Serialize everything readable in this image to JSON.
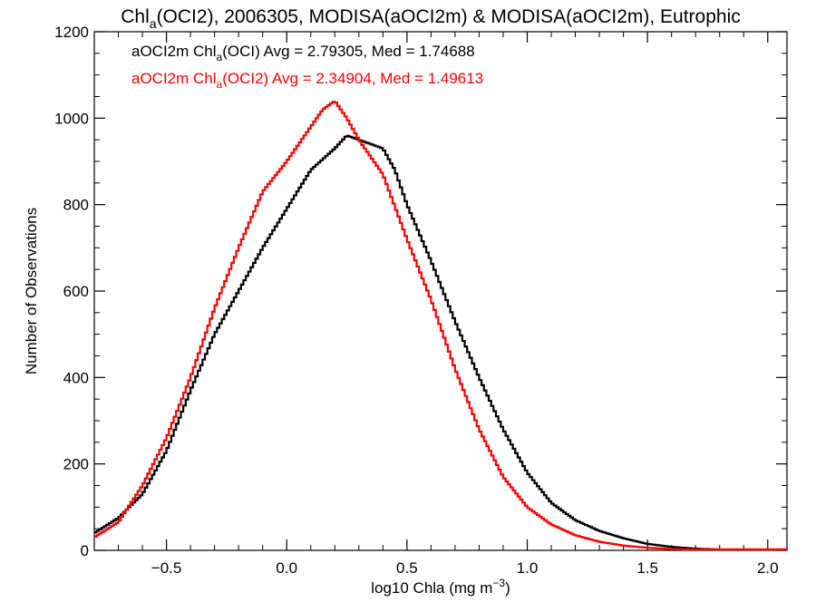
{
  "chart_data": {
    "type": "line",
    "title": {
      "prefix": "Chl",
      "sub": "a",
      "suffix": "(OCI2), 2006305, MODISA(aOCI2m) & MODISA(aOCI2m), Eutrophic"
    },
    "xlabel": {
      "text": "log10 Chla (mg m",
      "sup": "−3",
      "close": ")"
    },
    "ylabel": "Number of Observations",
    "xlim": [
      -0.8,
      2.08
    ],
    "ylim": [
      0,
      1200
    ],
    "x_ticks": [
      -0.5,
      0.0,
      0.5,
      1.0,
      1.5,
      2.0
    ],
    "x_tick_labels": [
      "−0.5",
      "0.0",
      "0.5",
      "1.0",
      "1.5",
      "2.0"
    ],
    "y_ticks": [
      0,
      200,
      400,
      600,
      800,
      1000,
      1200
    ],
    "y_tick_labels": [
      "0",
      "200",
      "400",
      "600",
      "800",
      "1000",
      "1200"
    ],
    "grid": false,
    "legend_position": "top-left",
    "series": [
      {
        "name": {
          "prefix": "aOCI2m Chl",
          "sub": "a",
          "suffix": "(OCI) Avg = 2.79305, Med = 1.74688"
        },
        "color": "#000000",
        "points": [
          [
            -0.8,
            40
          ],
          [
            -0.7,
            75
          ],
          [
            -0.6,
            130
          ],
          [
            -0.5,
            230
          ],
          [
            -0.4,
            370
          ],
          [
            -0.3,
            500
          ],
          [
            -0.2,
            600
          ],
          [
            -0.1,
            700
          ],
          [
            0.0,
            790
          ],
          [
            0.1,
            880
          ],
          [
            0.2,
            930
          ],
          [
            0.25,
            960
          ],
          [
            0.3,
            950
          ],
          [
            0.4,
            930
          ],
          [
            0.45,
            880
          ],
          [
            0.5,
            800
          ],
          [
            0.6,
            670
          ],
          [
            0.7,
            530
          ],
          [
            0.8,
            400
          ],
          [
            0.9,
            280
          ],
          [
            1.0,
            180
          ],
          [
            1.1,
            110
          ],
          [
            1.2,
            70
          ],
          [
            1.3,
            45
          ],
          [
            1.4,
            28
          ],
          [
            1.5,
            15
          ],
          [
            1.6,
            8
          ],
          [
            1.7,
            4
          ],
          [
            1.8,
            2
          ],
          [
            1.9,
            1
          ],
          [
            2.0,
            0
          ],
          [
            2.08,
            0
          ]
        ]
      },
      {
        "name": {
          "prefix": "aOCI2m Chl",
          "sub": "a",
          "suffix": "(OCI2) Avg = 2.34904, Med = 1.49613"
        },
        "color": "#ff0000",
        "points": [
          [
            -0.8,
            30
          ],
          [
            -0.7,
            65
          ],
          [
            -0.6,
            150
          ],
          [
            -0.5,
            260
          ],
          [
            -0.4,
            400
          ],
          [
            -0.3,
            560
          ],
          [
            -0.2,
            700
          ],
          [
            -0.1,
            830
          ],
          [
            0.0,
            900
          ],
          [
            0.1,
            980
          ],
          [
            0.15,
            1020
          ],
          [
            0.2,
            1040
          ],
          [
            0.25,
            1000
          ],
          [
            0.3,
            950
          ],
          [
            0.4,
            870
          ],
          [
            0.5,
            720
          ],
          [
            0.6,
            580
          ],
          [
            0.7,
            420
          ],
          [
            0.8,
            280
          ],
          [
            0.9,
            170
          ],
          [
            1.0,
            100
          ],
          [
            1.1,
            60
          ],
          [
            1.2,
            35
          ],
          [
            1.3,
            20
          ],
          [
            1.4,
            11
          ],
          [
            1.5,
            6
          ],
          [
            1.6,
            3
          ],
          [
            1.7,
            1
          ],
          [
            1.8,
            0
          ],
          [
            2.08,
            0
          ]
        ]
      }
    ]
  }
}
